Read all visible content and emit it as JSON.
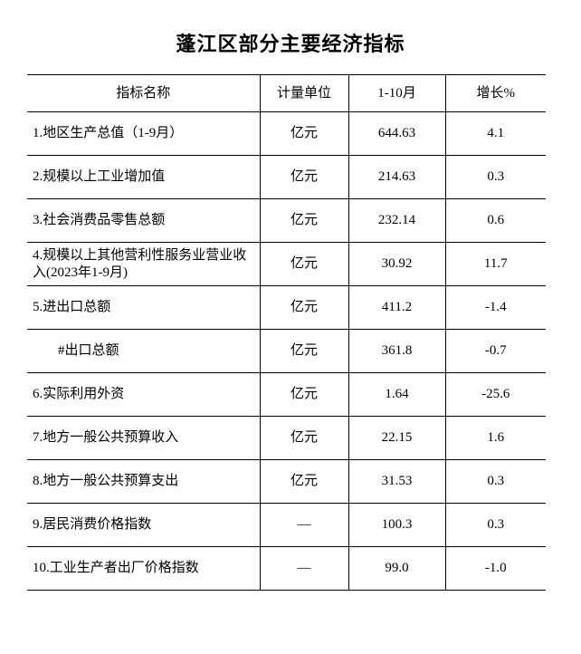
{
  "page": {
    "title": "蓬江区部分主要经济指标",
    "background_color": "#ffffff",
    "text_color": "#000000",
    "rule_color": "#000000"
  },
  "table": {
    "columns": [
      "指标名称",
      "计量单位",
      "1-10月",
      "增长%"
    ],
    "rows": [
      {
        "name": "1.地区生产总值（1-9月）",
        "unit": "亿元",
        "value": "644.63",
        "growth": "4.1",
        "indent": false
      },
      {
        "name": "2.规模以上工业增加值",
        "unit": "亿元",
        "value": "214.63",
        "growth": "0.3",
        "indent": false
      },
      {
        "name": "3.社会消费品零售总额",
        "unit": "亿元",
        "value": "232.14",
        "growth": "0.6",
        "indent": false
      },
      {
        "name": "4.规模以上其他营利性服务业营业收入(2023年1-9月)",
        "unit": "亿元",
        "value": "30.92",
        "growth": "11.7",
        "indent": false
      },
      {
        "name": "5.进出口总额",
        "unit": "亿元",
        "value": "411.2",
        "growth": "-1.4",
        "indent": false
      },
      {
        "name": "#出口总额",
        "unit": "亿元",
        "value": "361.8",
        "growth": "-0.7",
        "indent": true
      },
      {
        "name": "6.实际利用外资",
        "unit": "亿元",
        "value": "1.64",
        "growth": "-25.6",
        "indent": false
      },
      {
        "name": "7.地方一般公共预算收入",
        "unit": "亿元",
        "value": "22.15",
        "growth": "1.6",
        "indent": false
      },
      {
        "name": "8.地方一般公共预算支出",
        "unit": "亿元",
        "value": "31.53",
        "growth": "0.3",
        "indent": false
      },
      {
        "name": "9.居民消费价格指数",
        "unit": "—",
        "value": "100.3",
        "growth": "0.3",
        "indent": false
      },
      {
        "name": "10.工业生产者出厂价格指数",
        "unit": "—",
        "value": "99.0",
        "growth": "-1.0",
        "indent": false
      }
    ]
  }
}
